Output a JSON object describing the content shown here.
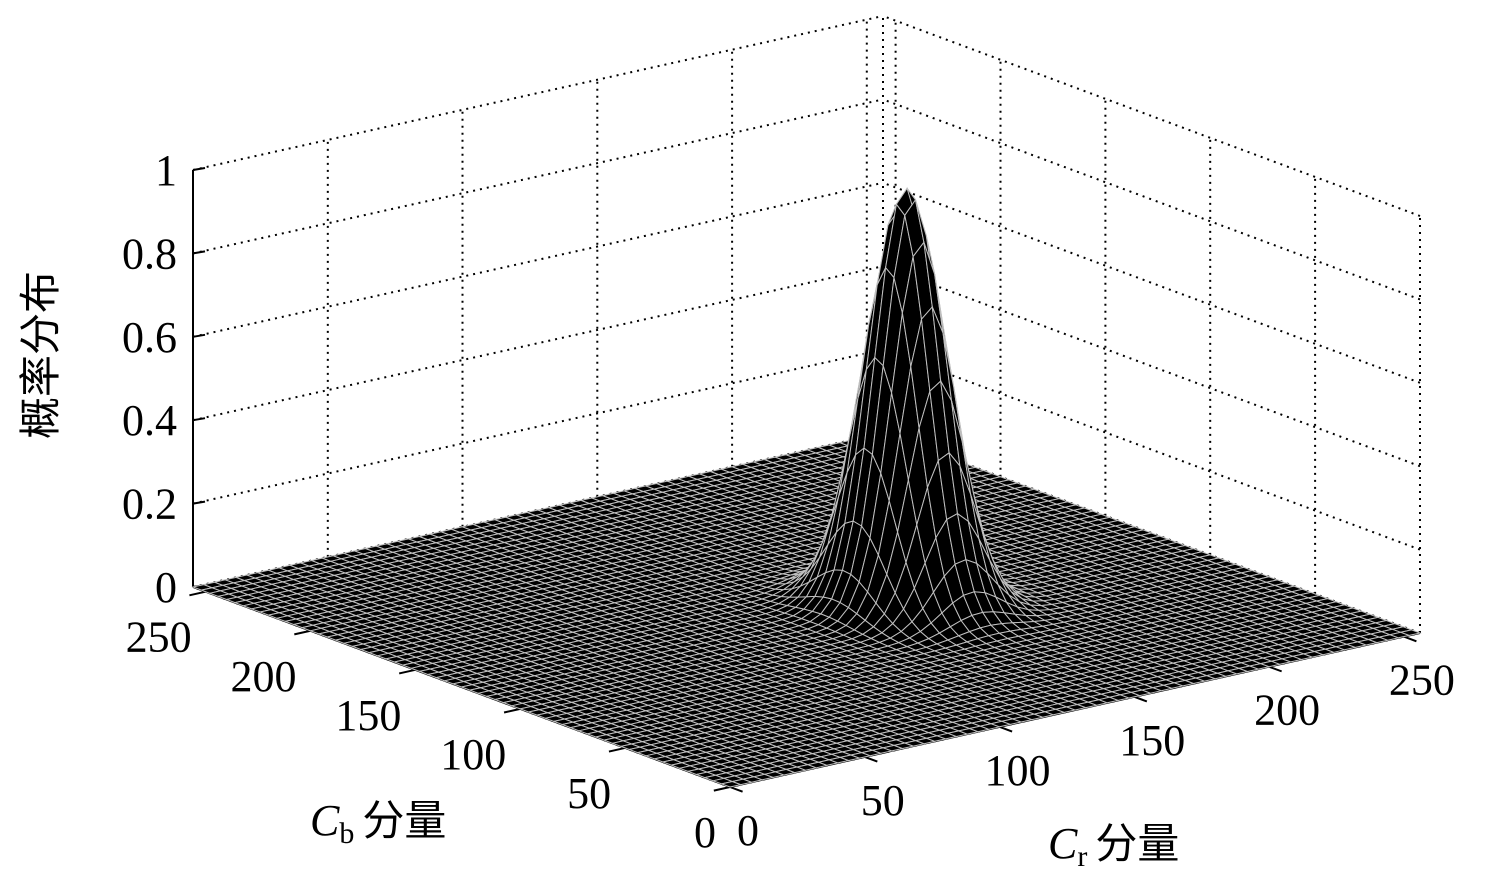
{
  "chart_data": {
    "type": "surface3d",
    "surface": "gaussian",
    "peak": {
      "cr": 155,
      "cb": 115,
      "z": 1.0
    },
    "spread": {
      "cr": 11,
      "cb": 14
    },
    "x_axis": {
      "name_var": "C",
      "name_sub": "r",
      "name_rest": "分量",
      "ticks": [
        "0",
        "50",
        "100",
        "150",
        "200",
        "250"
      ],
      "range": [
        0,
        256
      ]
    },
    "y_axis": {
      "name_var": "C",
      "name_sub": "b",
      "name_rest": "分量",
      "ticks": [
        "0",
        "50",
        "100",
        "150",
        "200",
        "250"
      ],
      "range": [
        0,
        256
      ]
    },
    "z_axis": {
      "label": "概率分布",
      "ticks": [
        "0",
        "0.2",
        "0.4",
        "0.6",
        "0.8",
        "1"
      ],
      "range": [
        0,
        1
      ]
    },
    "grid": true,
    "colormap": "gray"
  }
}
